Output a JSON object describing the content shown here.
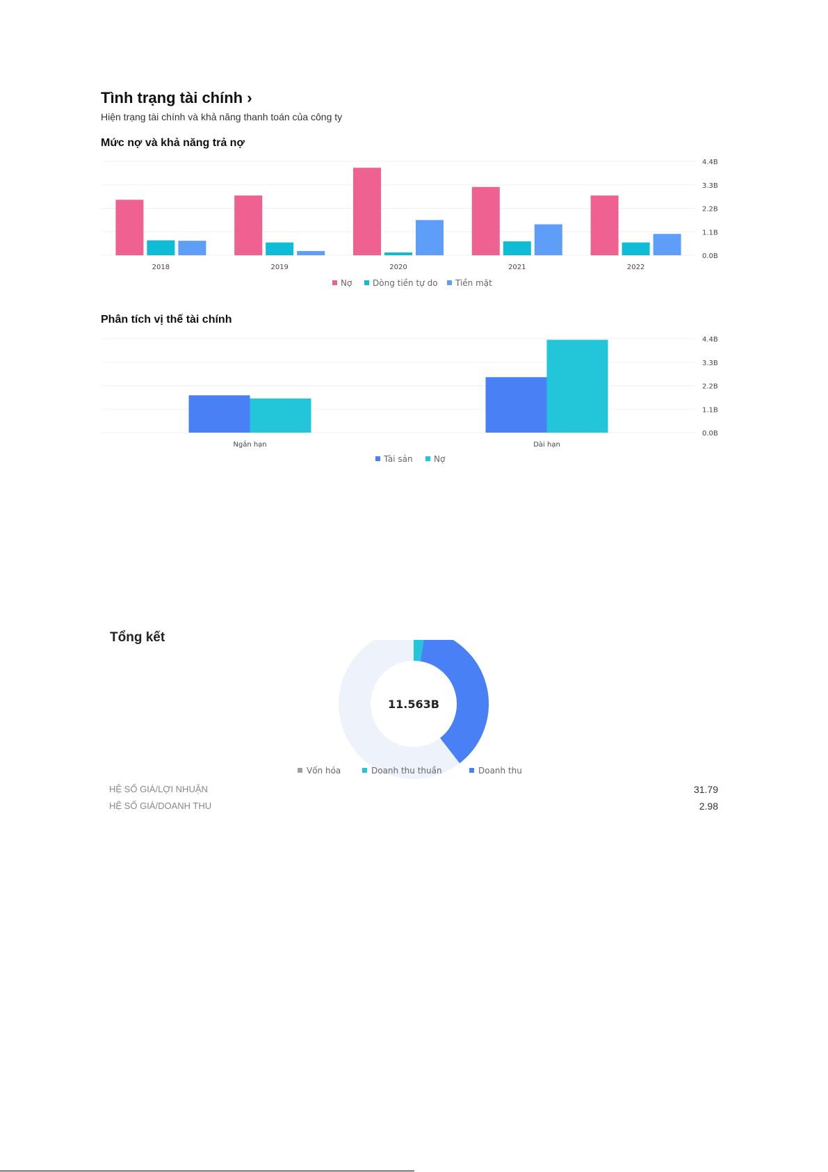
{
  "header": {
    "title": "Tình trạng tài chính",
    "chevron": "›",
    "subtitle": "Hiện trạng tài chính và khả năng thanh toán của công ty"
  },
  "colors": {
    "pink": "#ee6191",
    "cyan": "#0ebcd6",
    "blue": "#5e9ef8",
    "asset_blue": "#4a80f5",
    "debt_cyan": "#23c5d9",
    "donut_track": "#eef2fb",
    "donut_gray": "#9aa0a6"
  },
  "chart_data": [
    {
      "type": "bar",
      "title": "Mức nợ và khả năng trả nợ",
      "categories": [
        "2018",
        "2019",
        "2020",
        "2021",
        "2022"
      ],
      "series": [
        {
          "name": "Nợ",
          "values": [
            2.6,
            2.8,
            4.1,
            3.2,
            2.8
          ]
        },
        {
          "name": "Dòng tiền tự do",
          "values": [
            0.7,
            0.6,
            0.13,
            0.65,
            0.6
          ]
        },
        {
          "name": "Tiền mặt",
          "values": [
            0.68,
            0.2,
            1.65,
            1.45,
            1.0
          ]
        }
      ],
      "yticks": [
        "0.0B",
        "1.1B",
        "2.2B",
        "3.3B",
        "4.4B"
      ],
      "ylim": [
        0,
        4.4
      ]
    },
    {
      "type": "bar",
      "title": "Phân tích vị thế tài chính",
      "categories": [
        "Ngắn hạn",
        "Dài hạn"
      ],
      "series": [
        {
          "name": "Tài sản",
          "values": [
            1.75,
            2.6
          ]
        },
        {
          "name": "Nợ",
          "values": [
            1.6,
            4.35
          ]
        }
      ],
      "yticks": [
        "0.0B",
        "1.1B",
        "2.2B",
        "3.3B",
        "4.4B"
      ],
      "ylim": [
        0,
        4.4
      ]
    },
    {
      "type": "pie",
      "title": "Tổng kết",
      "center_label": "11.563B",
      "slices": [
        {
          "name": "Vốn hóa",
          "fraction": 0
        },
        {
          "name": "Doanh thu thuần",
          "fraction": 0.025
        },
        {
          "name": "Doanh thu",
          "fraction": 0.37
        }
      ]
    }
  ],
  "ratios": [
    {
      "label": "HỆ SỐ GIÁ/LỢI NHUẬN",
      "value": "31.79"
    },
    {
      "label": "HỆ SỐ GIÁ/DOANH THU",
      "value": "2.98"
    }
  ]
}
